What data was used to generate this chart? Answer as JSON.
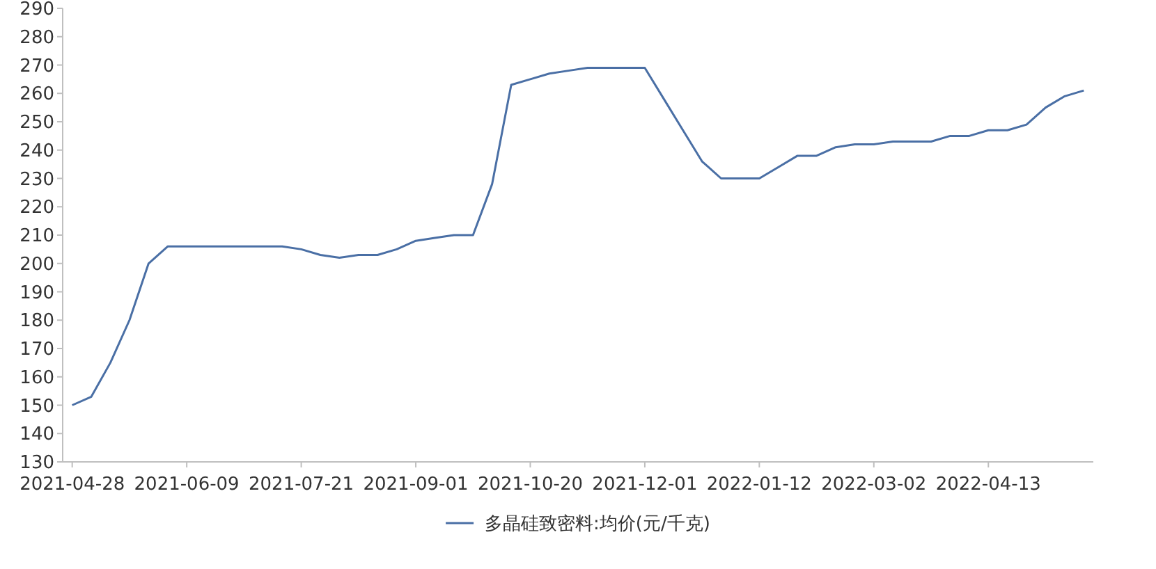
{
  "chart_data": {
    "type": "line",
    "categories": [
      "2021-04-28",
      null,
      null,
      null,
      null,
      null,
      "2021-06-09",
      null,
      null,
      null,
      null,
      null,
      "2021-07-21",
      null,
      null,
      null,
      null,
      null,
      "2021-09-01",
      null,
      null,
      null,
      null,
      null,
      "2021-10-20",
      null,
      null,
      null,
      null,
      null,
      "2021-12-01",
      null,
      null,
      null,
      null,
      null,
      "2022-01-12",
      null,
      null,
      null,
      null,
      null,
      "2022-03-02",
      null,
      null,
      null,
      null,
      null,
      "2022-04-13",
      null,
      null,
      null,
      null,
      null
    ],
    "series": [
      {
        "name": "多晶硅致密料:均价(元/千克)",
        "color": "#4a6fa5",
        "values": [
          150,
          153,
          165,
          180,
          200,
          206,
          206,
          206,
          206,
          206,
          206,
          206,
          205,
          203,
          202,
          203,
          203,
          205,
          208,
          209,
          210,
          210,
          228,
          263,
          265,
          267,
          268,
          269,
          269,
          269,
          269,
          258,
          247,
          236,
          230,
          230,
          230,
          234,
          238,
          238,
          241,
          242,
          242,
          243,
          243,
          243,
          245,
          245,
          247,
          247,
          249,
          255,
          259,
          261
        ]
      }
    ],
    "ylim": [
      130,
      290
    ],
    "yticks": [
      130,
      140,
      150,
      160,
      170,
      180,
      190,
      200,
      210,
      220,
      230,
      240,
      250,
      260,
      270,
      280,
      290
    ],
    "legend": "bottom",
    "line_style": "solid"
  }
}
